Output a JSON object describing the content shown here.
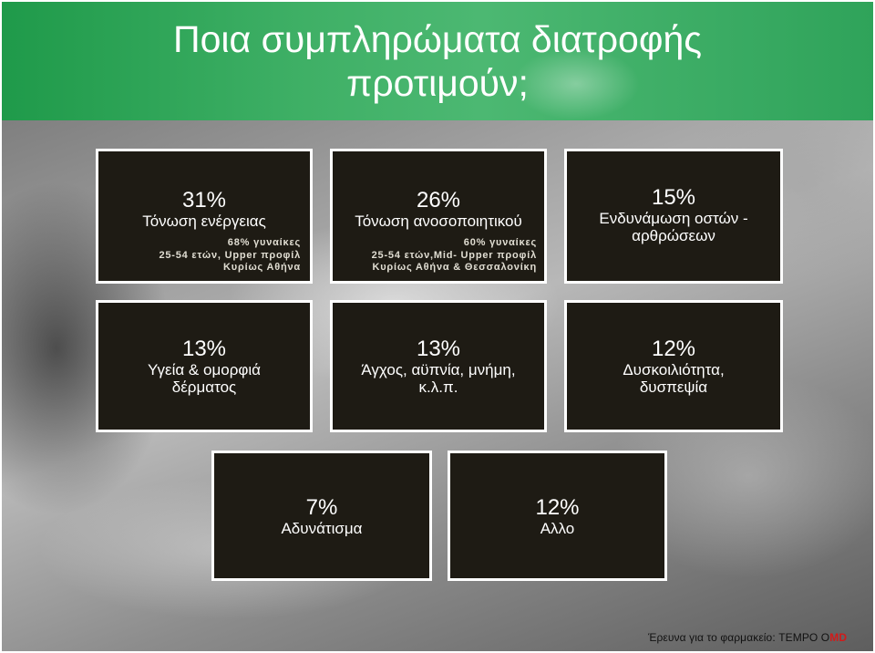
{
  "title": {
    "line1": "Ποια συμπληρώματα διατροφής",
    "line2": "προτιμούν;"
  },
  "cards": [
    {
      "value": "31%",
      "label": "Τόνωση ενέργειας",
      "details": [
        "68% γυναίκες",
        "25-54 ετών, Upper προφίλ",
        "Κυρίως Αθήνα"
      ]
    },
    {
      "value": "26%",
      "label": "Τόνωση ανοσοποιητικού",
      "details": [
        "60% γυναίκες",
        "25-54 ετών,Mid- Upper προφίλ",
        "Κυρίως Αθήνα & Θεσσαλονίκη"
      ]
    },
    {
      "value": "15%",
      "label_lines": [
        "Ενδυνάμωση οστών -",
        "αρθρώσεων"
      ]
    },
    {
      "value": "13%",
      "label_lines": [
        "Υγεία & ομορφιά",
        "δέρματος"
      ]
    },
    {
      "value": "13%",
      "label_lines": [
        "Άγχος, αϋπνία, μνήμη,",
        "κ.λ.π."
      ]
    },
    {
      "value": "12%",
      "label_lines": [
        "Δυσκοιλιότητα,",
        "δυσπεψία"
      ]
    },
    {
      "value": "7%",
      "label": "Αδυνάτισμα"
    },
    {
      "value": "12%",
      "label": "Αλλο"
    }
  ],
  "source": {
    "prefix": "Έρευνα για το φαρμακείο: TEMPO O",
    "brand_suffix": "MD"
  },
  "colors": {
    "header_green": "#3fb066",
    "card_background": "#1e1b14",
    "brand_red": "#d21a1a"
  }
}
